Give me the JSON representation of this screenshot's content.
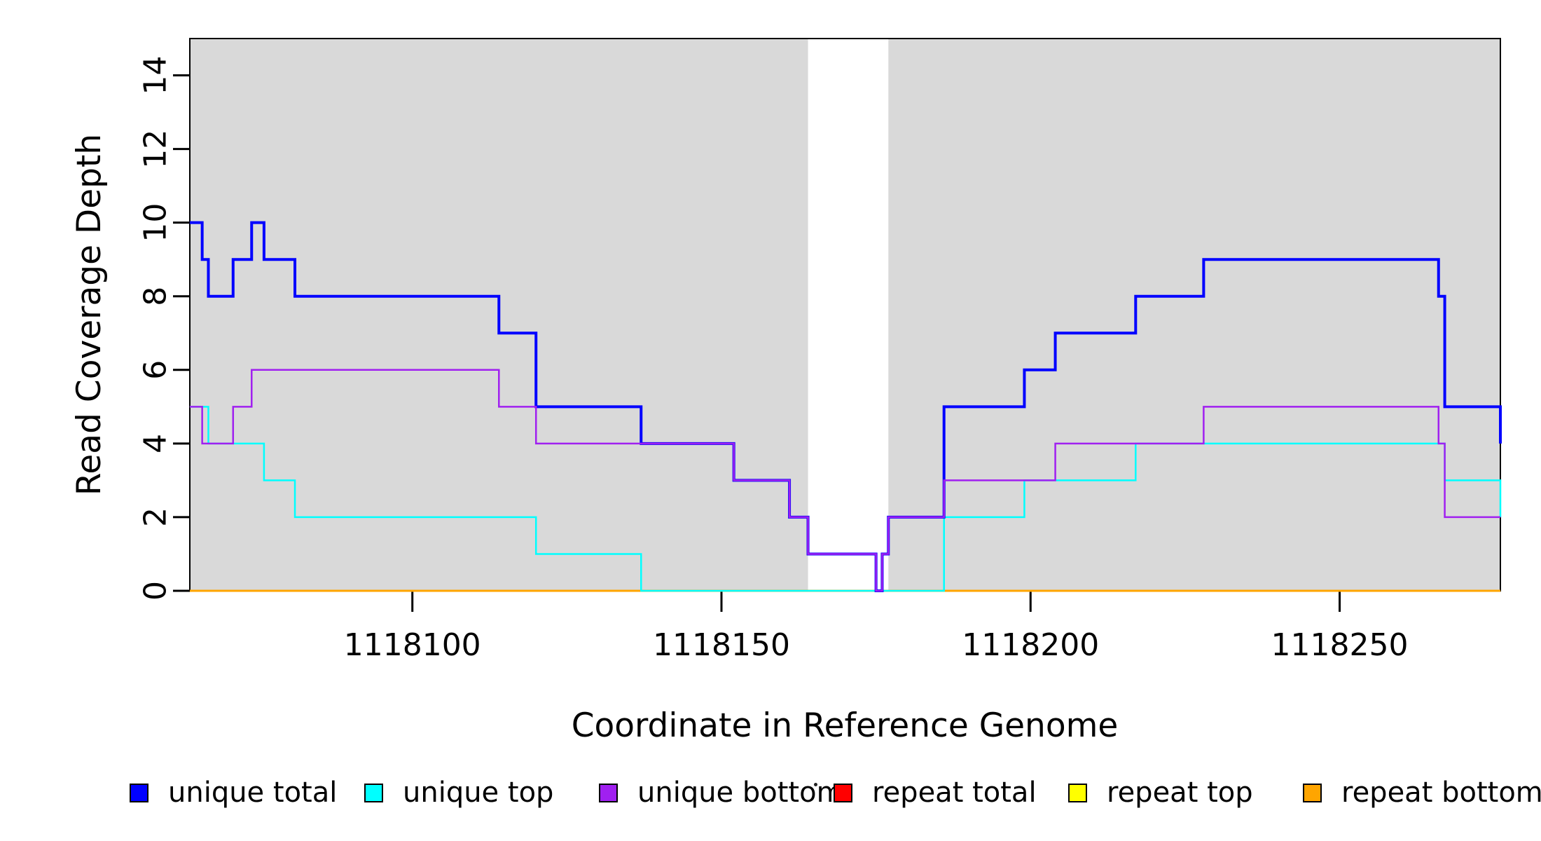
{
  "chart_data": {
    "type": "line",
    "subtype": "step",
    "title": "",
    "xlabel": "Coordinate in Reference Genome",
    "ylabel": "Read Coverage Depth",
    "xlim": [
      1118064,
      1118276
    ],
    "ylim": [
      0,
      15
    ],
    "x_ticks": [
      1118100,
      1118150,
      1118200,
      1118250
    ],
    "y_ticks": [
      0,
      2,
      4,
      6,
      8,
      10,
      12,
      14
    ],
    "grid": false,
    "box_color": "#000000",
    "shaded_regions": {
      "color": "#d9d9d9",
      "ranges": [
        [
          1118064,
          1118164
        ],
        [
          1118177,
          1118276
        ]
      ]
    },
    "draw_order": [
      "repeat total",
      "repeat top",
      "repeat bottom",
      "unique top",
      "unique total",
      "unique bottom"
    ],
    "series": [
      {
        "name": "unique total",
        "color": "#0000ff",
        "line_width": 4,
        "steps": [
          [
            1118064,
            10
          ],
          [
            1118066,
            9
          ],
          [
            1118067,
            8
          ],
          [
            1118071,
            9
          ],
          [
            1118074,
            10
          ],
          [
            1118076,
            9
          ],
          [
            1118081,
            8
          ],
          [
            1118114,
            7
          ],
          [
            1118120,
            5
          ],
          [
            1118137,
            4
          ],
          [
            1118152,
            3
          ],
          [
            1118161,
            2
          ],
          [
            1118164,
            1
          ],
          [
            1118175,
            0
          ],
          [
            1118176,
            1
          ],
          [
            1118177,
            2
          ],
          [
            1118186,
            5
          ],
          [
            1118199,
            6
          ],
          [
            1118204,
            7
          ],
          [
            1118217,
            8
          ],
          [
            1118228,
            9
          ],
          [
            1118266,
            8
          ],
          [
            1118267,
            5
          ],
          [
            1118276,
            4
          ]
        ]
      },
      {
        "name": "unique top",
        "color": "#00ffff",
        "line_width": 2.5,
        "steps": [
          [
            1118064,
            5
          ],
          [
            1118067,
            4
          ],
          [
            1118076,
            3
          ],
          [
            1118081,
            2
          ],
          [
            1118120,
            1
          ],
          [
            1118137,
            0
          ],
          [
            1118186,
            2
          ],
          [
            1118199,
            3
          ],
          [
            1118217,
            4
          ],
          [
            1118267,
            3
          ],
          [
            1118276,
            2
          ]
        ]
      },
      {
        "name": "unique bottom",
        "color": "#a020f0",
        "line_width": 2.5,
        "steps": [
          [
            1118064,
            5
          ],
          [
            1118066,
            4
          ],
          [
            1118071,
            5
          ],
          [
            1118074,
            6
          ],
          [
            1118114,
            5
          ],
          [
            1118120,
            4
          ],
          [
            1118152,
            3
          ],
          [
            1118161,
            2
          ],
          [
            1118164,
            1
          ],
          [
            1118175,
            0
          ],
          [
            1118176,
            1
          ],
          [
            1118177,
            2
          ],
          [
            1118186,
            3
          ],
          [
            1118204,
            4
          ],
          [
            1118228,
            5
          ],
          [
            1118266,
            4
          ],
          [
            1118267,
            2
          ],
          [
            1118276,
            2
          ]
        ]
      },
      {
        "name": "repeat total",
        "color": "#ff0000",
        "line_width": 2.5,
        "steps": [
          [
            1118064,
            0
          ],
          [
            1118276,
            0
          ]
        ]
      },
      {
        "name": "repeat top",
        "color": "#ffff00",
        "line_width": 2.5,
        "steps": [
          [
            1118064,
            0
          ],
          [
            1118276,
            0
          ]
        ]
      },
      {
        "name": "repeat bottom",
        "color": "#ffa500",
        "line_width": 3,
        "steps": [
          [
            1118064,
            0
          ],
          [
            1118276,
            0
          ]
        ]
      }
    ],
    "legend": {
      "position": "bottom",
      "items": [
        {
          "label": "unique total",
          "color": "#0000ff"
        },
        {
          "label": "unique top",
          "color": "#00ffff"
        },
        {
          "label": "unique bottom",
          "color": "#a020f0"
        },
        {
          "label": "repeat total",
          "color": "#ff0000"
        },
        {
          "label": "repeat top",
          "color": "#ffff00"
        },
        {
          "label": "repeat bottom",
          "color": "#ffa500"
        }
      ]
    }
  }
}
